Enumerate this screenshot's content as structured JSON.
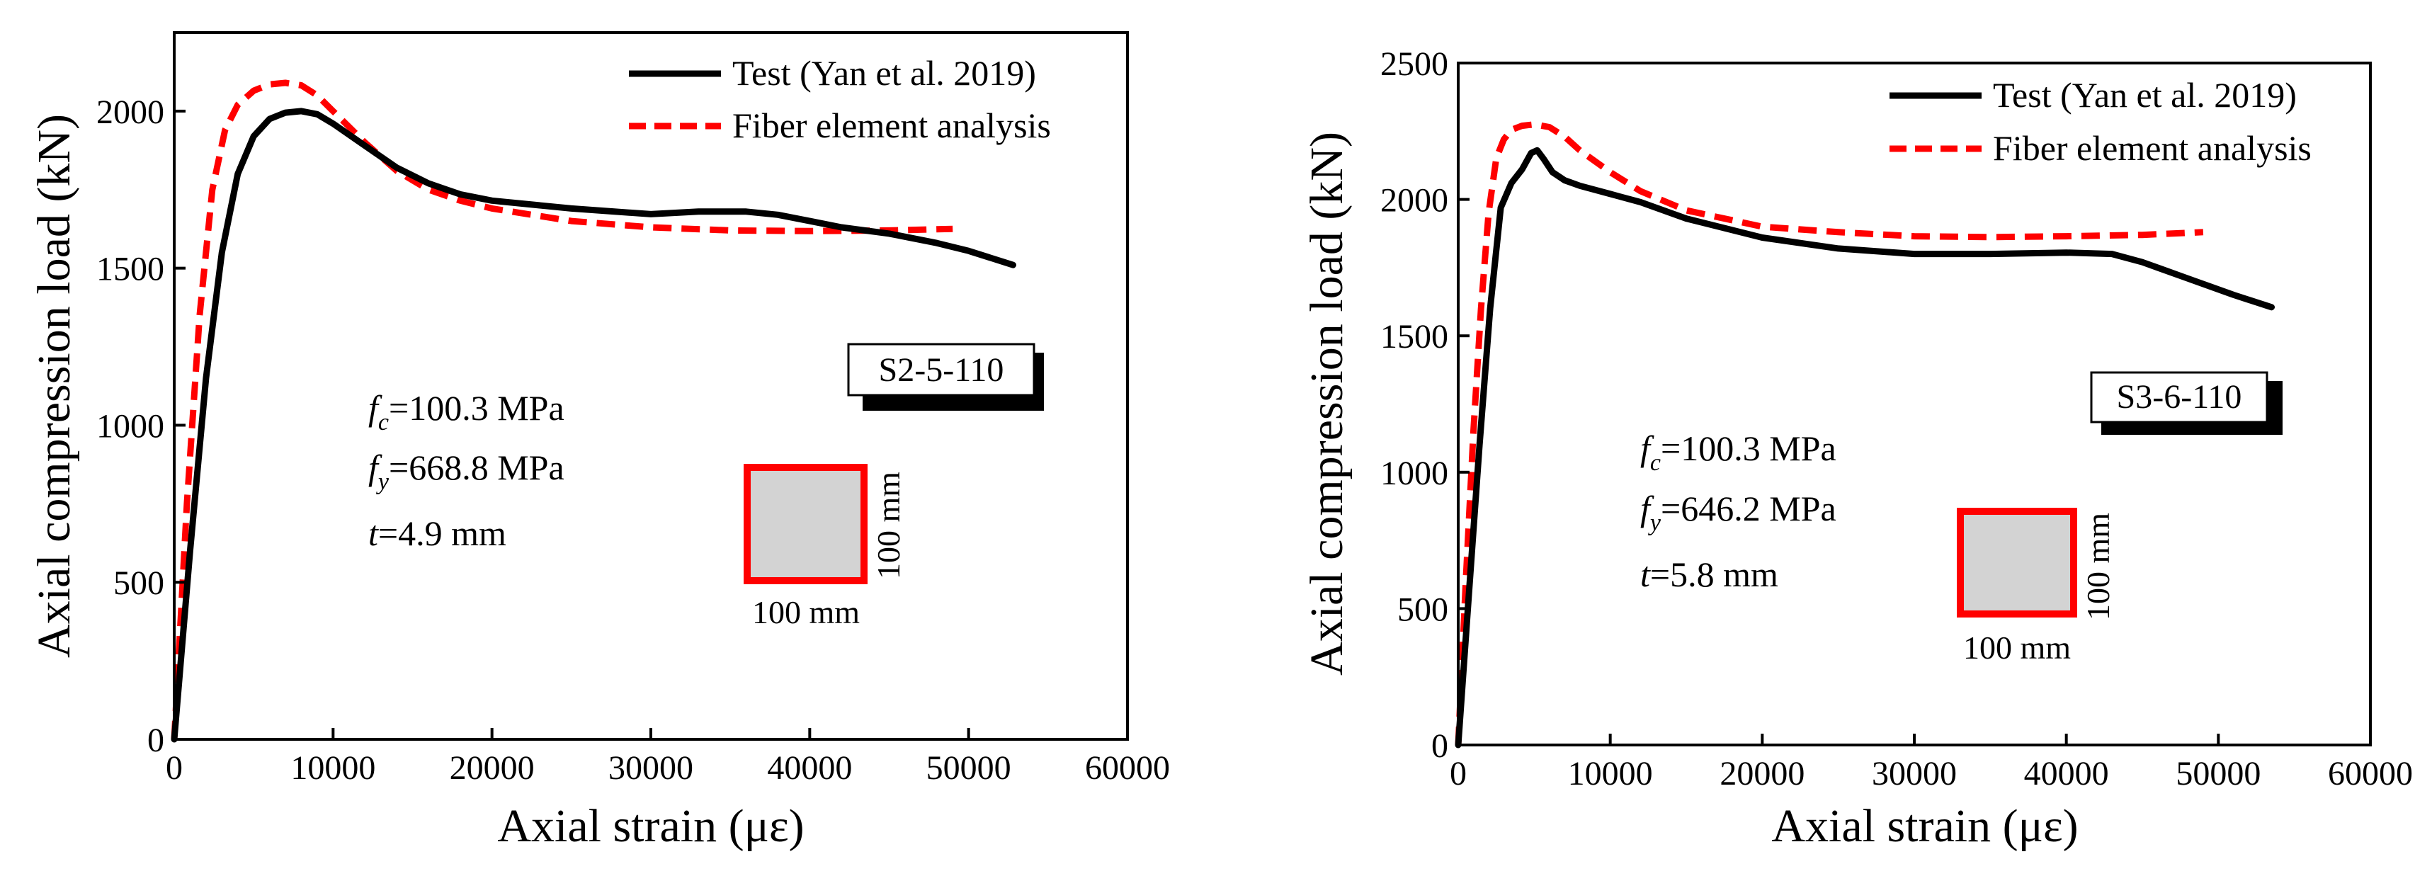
{
  "chart_data": [
    {
      "type": "line",
      "panel": "left",
      "xlabel": "Axial strain (με)",
      "ylabel": "Axial compression load (kN)",
      "xlim": [
        0,
        60000
      ],
      "ylim": [
        0,
        2250
      ],
      "x_ticks": [
        0,
        10000,
        20000,
        30000,
        40000,
        50000,
        60000
      ],
      "y_ticks": [
        0,
        500,
        1000,
        1500,
        2000
      ],
      "legend_position": "top-right",
      "series": [
        {
          "name": "Test (Yan et al. 2019)",
          "color": "#000000",
          "style": "solid",
          "x": [
            0,
            1000,
            2000,
            3000,
            4000,
            5000,
            6000,
            7000,
            8000,
            9000,
            10000,
            12000,
            14000,
            16000,
            18000,
            20000,
            25000,
            30000,
            33000,
            36000,
            38000,
            40000,
            42000,
            45000,
            48000,
            50000,
            52800
          ],
          "y": [
            0,
            600,
            1150,
            1550,
            1800,
            1920,
            1975,
            1995,
            2000,
            1990,
            1960,
            1890,
            1820,
            1770,
            1735,
            1715,
            1690,
            1672,
            1680,
            1680,
            1670,
            1650,
            1630,
            1610,
            1580,
            1555,
            1510
          ]
        },
        {
          "name": "Fiber element analysis",
          "color": "#ff0000",
          "style": "dashed",
          "x": [
            0,
            800,
            1600,
            2400,
            3200,
            4000,
            5000,
            6000,
            7000,
            8000,
            9000,
            10000,
            12000,
            14000,
            16000,
            18000,
            20000,
            25000,
            30000,
            35000,
            40000,
            45000,
            49000
          ],
          "y": [
            0,
            750,
            1350,
            1750,
            1940,
            2020,
            2065,
            2085,
            2090,
            2082,
            2050,
            2000,
            1900,
            1810,
            1750,
            1715,
            1690,
            1650,
            1630,
            1620,
            1618,
            1620,
            1625
          ]
        }
      ],
      "label_box": "S2-5-110",
      "annotations": {
        "fc": "=100.3 MPa",
        "fy": "=668.8 MPa",
        "t": "=4.9 mm"
      },
      "section": {
        "width_label": "100 mm",
        "height_label": "100 mm"
      }
    },
    {
      "type": "line",
      "panel": "right",
      "xlabel": "Axial strain (με)",
      "ylabel": "Axial compression load (kN)",
      "xlim": [
        0,
        60000
      ],
      "ylim": [
        0,
        2500
      ],
      "x_ticks": [
        0,
        10000,
        20000,
        30000,
        40000,
        50000,
        60000
      ],
      "y_ticks": [
        0,
        500,
        1000,
        1500,
        2000,
        2500
      ],
      "legend_position": "top-right",
      "series": [
        {
          "name": "Test (Yan et al. 2019)",
          "color": "#000000",
          "style": "solid",
          "x": [
            0,
            700,
            1400,
            2100,
            2800,
            3500,
            4200,
            4800,
            5200,
            5600,
            6200,
            7000,
            8000,
            10000,
            12000,
            15000,
            20000,
            25000,
            30000,
            35000,
            40000,
            43000,
            45000,
            48000,
            51000,
            53500
          ],
          "y": [
            0,
            550,
            1100,
            1600,
            1970,
            2060,
            2110,
            2170,
            2180,
            2150,
            2100,
            2070,
            2050,
            2020,
            1990,
            1930,
            1860,
            1820,
            1800,
            1800,
            1805,
            1800,
            1770,
            1710,
            1650,
            1605
          ]
        },
        {
          "name": "Fiber element analysis",
          "color": "#ff0000",
          "style": "dashed",
          "x": [
            0,
            500,
            1000,
            1500,
            2000,
            2500,
            3000,
            3500,
            4200,
            5000,
            6000,
            7000,
            8000,
            10000,
            12000,
            15000,
            20000,
            25000,
            30000,
            35000,
            40000,
            45000,
            49000
          ],
          "y": [
            0,
            600,
            1150,
            1600,
            1950,
            2150,
            2220,
            2255,
            2270,
            2275,
            2265,
            2230,
            2180,
            2100,
            2030,
            1960,
            1900,
            1880,
            1865,
            1862,
            1865,
            1870,
            1880
          ]
        }
      ],
      "label_box": "S3-6-110",
      "annotations": {
        "fc": "=100.3 MPa",
        "fy": "=646.2 MPa",
        "t": "=5.8 mm"
      },
      "section": {
        "width_label": "100 mm",
        "height_label": "100 mm"
      }
    }
  ],
  "symbols": {
    "f": "f",
    "c": "c",
    "y": "y",
    "t": "t"
  }
}
